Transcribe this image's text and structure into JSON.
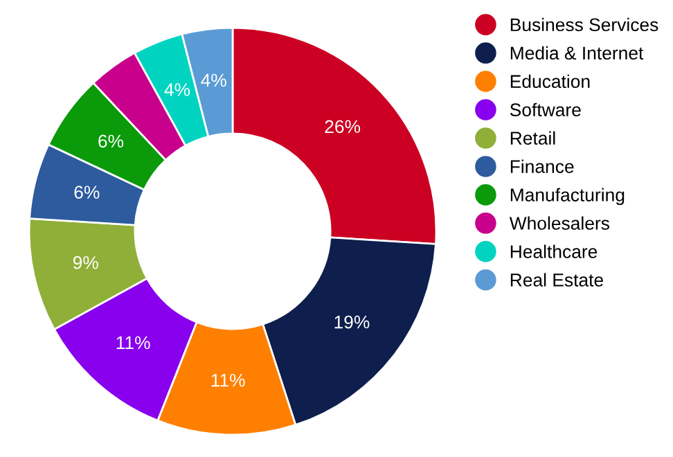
{
  "chart_data": {
    "type": "donut",
    "categories": [
      "Business Services",
      "Media & Internet",
      "Education",
      "Software",
      "Retail",
      "Finance",
      "Manufacturing",
      "Wholesalers",
      "Healthcare",
      "Real Estate"
    ],
    "values": [
      26,
      19,
      11,
      11,
      9,
      6,
      6,
      4,
      4,
      4
    ],
    "value_labels": [
      "26%",
      "19%",
      "11%",
      "11%",
      "9%",
      "6%",
      "6%",
      null,
      "4%",
      "4%"
    ],
    "colors": [
      "#cc0022",
      "#0e1f4d",
      "#ff7f00",
      "#8800ee",
      "#8faf38",
      "#2e5b9e",
      "#0a9a0a",
      "#c8008c",
      "#00d4c0",
      "#5b9bd5"
    ],
    "legend": "top right"
  }
}
